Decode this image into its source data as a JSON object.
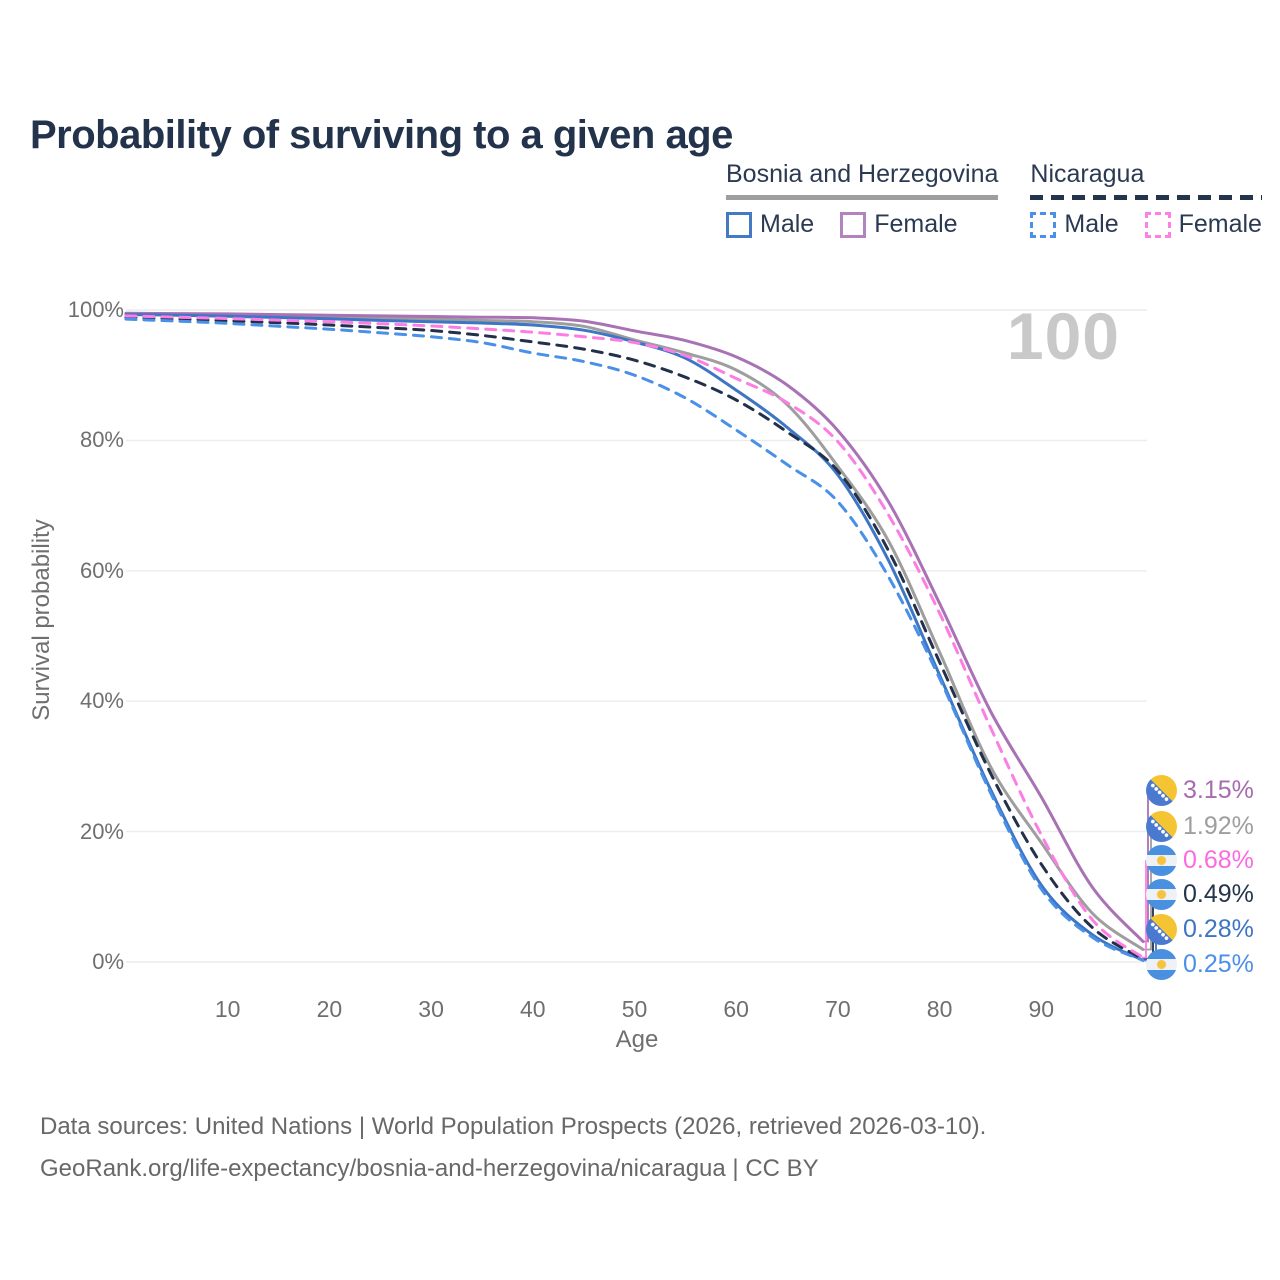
{
  "title": "Probability of surviving to a given age",
  "watermark": "100",
  "legend": {
    "groups": [
      {
        "label": "Bosnia and Herzegovina",
        "line_color": "#9e9e9e",
        "line_style": "solid",
        "items": [
          {
            "label": "Male",
            "color": "#4479c4",
            "style": "solid"
          },
          {
            "label": "Female",
            "color": "#b383bd",
            "style": "solid"
          }
        ]
      },
      {
        "label": "Nicaragua",
        "line_color": "#24344d",
        "line_style": "dashed",
        "items": [
          {
            "label": "Male",
            "color": "#4a90e8",
            "style": "dashed"
          },
          {
            "label": "Female",
            "color": "#fc80e6",
            "style": "dashed"
          }
        ]
      }
    ]
  },
  "chart_data": {
    "type": "line",
    "title": "Probability of surviving to a given age",
    "xlabel": "Age",
    "ylabel": "Survival probability",
    "xlim": [
      0,
      100
    ],
    "ylim": [
      0,
      100
    ],
    "grid": "horizontal",
    "x_ticks": [
      10,
      20,
      30,
      40,
      50,
      60,
      70,
      80,
      90,
      100
    ],
    "y_tick_labels": [
      "100%",
      "80%",
      "60%",
      "40%",
      "20%",
      "0%"
    ],
    "highlighted_age": "100",
    "x": [
      0,
      5,
      10,
      15,
      20,
      25,
      30,
      35,
      40,
      45,
      50,
      55,
      60,
      65,
      70,
      75,
      80,
      85,
      90,
      95,
      100
    ],
    "series": [
      {
        "name": "Bosnia and Herzegovina — Both sexes",
        "country": "bih",
        "sex": "all",
        "color": "#9e9e9e",
        "dashed": false,
        "values": [
          99.4,
          99.3,
          99.2,
          99.1,
          98.95,
          98.75,
          98.6,
          98.4,
          98.2,
          97.5,
          95.4,
          93.4,
          90.8,
          85.5,
          76.0,
          64.5,
          47.5,
          30.0,
          18.3,
          7.5,
          1.92
        ],
        "end_label": "1.92%",
        "end_row": 1
      },
      {
        "name": "Bosnia and Herzegovina — Female",
        "country": "bih",
        "sex": "female",
        "color": "#a872b4",
        "dashed": false,
        "values": [
          99.5,
          99.45,
          99.4,
          99.3,
          99.2,
          99.1,
          99.0,
          98.9,
          98.8,
          98.3,
          96.8,
          95.3,
          92.8,
          88.5,
          81.5,
          70.5,
          55.0,
          38.5,
          25.3,
          11.5,
          3.15
        ],
        "end_label": "3.15%",
        "end_row": 0
      },
      {
        "name": "Bosnia and Herzegovina — Male",
        "country": "bih",
        "sex": "male",
        "color": "#3d76c4",
        "dashed": false,
        "values": [
          99.3,
          99.2,
          99.05,
          98.85,
          98.65,
          98.4,
          98.2,
          98.0,
          97.7,
          96.9,
          95.1,
          92.6,
          87.7,
          82.0,
          74.7,
          61.5,
          44.0,
          26.5,
          11.8,
          4.2,
          0.28
        ],
        "end_label": "0.28%",
        "end_row": 4
      },
      {
        "name": "Nicaragua — Both sexes",
        "country": "nic",
        "sex": "all",
        "color": "#22304a",
        "dashed": true,
        "values": [
          98.9,
          98.65,
          98.35,
          98.05,
          97.7,
          97.3,
          96.85,
          96.1,
          95.1,
          94.0,
          92.3,
          89.7,
          86.2,
          81.3,
          75.3,
          63.0,
          46.0,
          29.0,
          15.0,
          5.3,
          0.49
        ],
        "end_label": "0.49%",
        "end_row": 3
      },
      {
        "name": "Nicaragua — Female",
        "country": "nic",
        "sex": "female",
        "color": "#fc7ee4",
        "dashed": true,
        "values": [
          99.1,
          98.9,
          98.7,
          98.45,
          98.2,
          97.9,
          97.55,
          97.1,
          96.6,
          95.9,
          95.0,
          93.0,
          89.5,
          85.8,
          79.8,
          68.5,
          53.5,
          36.0,
          19.5,
          6.5,
          0.68
        ],
        "end_label": "0.68%",
        "end_row": 2
      },
      {
        "name": "Nicaragua — Male",
        "country": "nic",
        "sex": "male",
        "color": "#4a90e8",
        "dashed": true,
        "values": [
          98.6,
          98.3,
          97.95,
          97.5,
          97.05,
          96.5,
          95.9,
          95.0,
          93.4,
          92.1,
          90.0,
          86.5,
          81.6,
          76.3,
          70.6,
          59.0,
          43.5,
          26.0,
          11.2,
          3.8,
          0.25
        ],
        "end_label": "0.25%",
        "end_row": 5
      }
    ]
  },
  "end_labels": [
    {
      "value": "3.15%",
      "flag": "bih",
      "color": "#a76baf"
    },
    {
      "value": "1.92%",
      "flag": "bih",
      "color": "#9e9e9e"
    },
    {
      "value": "0.68%",
      "flag": "nic",
      "color": "#fb6be0"
    },
    {
      "value": "0.49%",
      "flag": "nic",
      "color": "#25354c"
    },
    {
      "value": "0.28%",
      "flag": "bih",
      "color": "#3c76c2"
    },
    {
      "value": "0.25%",
      "flag": "nic",
      "color": "#4a90e8"
    }
  ],
  "footer": {
    "line1": "Data sources: United Nations | World Population Prospects (2026, retrieved 2026-03-10).",
    "line2": "GeoRank.org/life-expectancy/bosnia-and-herzegovina/nicaragua | CC BY"
  }
}
